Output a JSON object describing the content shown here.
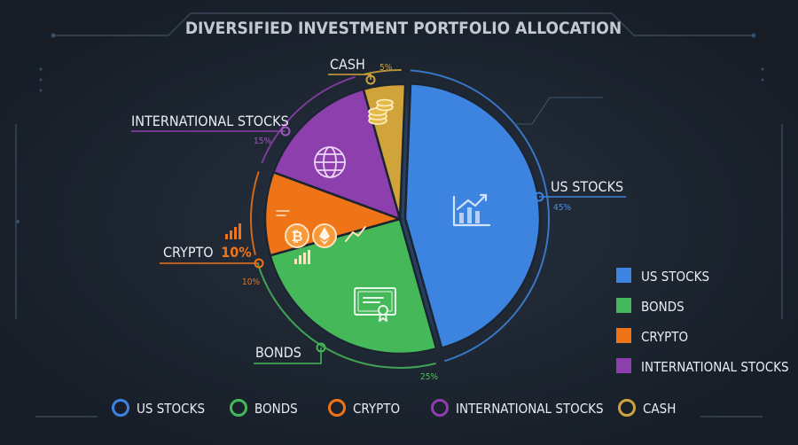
{
  "chart_data": {
    "type": "pie",
    "title": "DIVERSIFIED INVESTMENT PORTFOLIO ALLOCATION",
    "slices": [
      {
        "key": "us",
        "label": "US STOCKS",
        "value": 45,
        "value_label": "45%",
        "color": "#3d84e0",
        "icon": "trend-chart-icon"
      },
      {
        "key": "bonds",
        "label": "BONDS",
        "value": 25,
        "value_label": "25%",
        "color": "#45b95a",
        "icon": "certificate-icon"
      },
      {
        "key": "crypto",
        "label": "CRYPTO",
        "value": 10,
        "value_label": "10%",
        "label_inline_value": "10%",
        "color": "#ef7418",
        "icon": "crypto-coins-icon"
      },
      {
        "key": "intl",
        "label": "INTERNATIONAL STOCKS",
        "value": 15,
        "value_label": "15%",
        "color": "#8e3fae",
        "icon": "globe-icon"
      },
      {
        "key": "cash",
        "label": "CASH",
        "value": 5,
        "value_label": "5%",
        "color": "#d0a43a",
        "icon": "coin-stack-icon"
      }
    ],
    "legend_right": [
      "US STOCKS",
      "BONDS",
      "CRYPTO",
      "INTERNATIONAL STOCKS"
    ],
    "legend_bottom": [
      "US STOCKS",
      "BONDS",
      "CRYPTO",
      "INTERNATIONAL STOCKS",
      "CASH"
    ]
  }
}
